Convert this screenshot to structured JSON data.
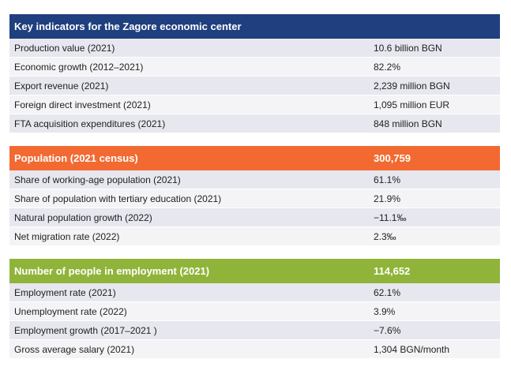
{
  "sections": [
    {
      "header": "Key indicators for the Zagore economic center",
      "header_value": "",
      "color": "#1f3f7e",
      "rows": [
        {
          "label": "Production value (2021)",
          "value": "10.6 billion BGN"
        },
        {
          "label": "Economic growth (2012–2021)",
          "value": "82.2%"
        },
        {
          "label": "Export revenue (2021)",
          "value": "2,239 million BGN"
        },
        {
          "label": "Foreign direct investment (2021)",
          "value": "1,095 million EUR"
        },
        {
          "label": "FTA acquisition expenditures (2021)",
          "value": "848 million BGN"
        }
      ]
    },
    {
      "header": "Population (2021 census)",
      "header_value": "300,759",
      "color": "#f26a32",
      "rows": [
        {
          "label": "Share of working-age population (2021)",
          "value": "61.1%"
        },
        {
          "label": "Share of population with tertiary education (2021)",
          "value": "21.9%"
        },
        {
          "label": "Natural population growth (2022)",
          "value": "−11.1‰"
        },
        {
          "label": "Net migration rate (2022)",
          "value": "2.3‰"
        }
      ]
    },
    {
      "header": "Number of people in employment (2021)",
      "header_value": "114,652",
      "color": "#90b43a",
      "rows": [
        {
          "label": "Employment rate (2021)",
          "value": "62.1%"
        },
        {
          "label": "Unemployment rate (2022)",
          "value": "3.9%"
        },
        {
          "label": "Employment growth (2017–2021 )",
          "value": "−7.6%"
        },
        {
          "label": "Gross average salary (2021)",
          "value": "1,304 BGN/month"
        }
      ]
    }
  ]
}
